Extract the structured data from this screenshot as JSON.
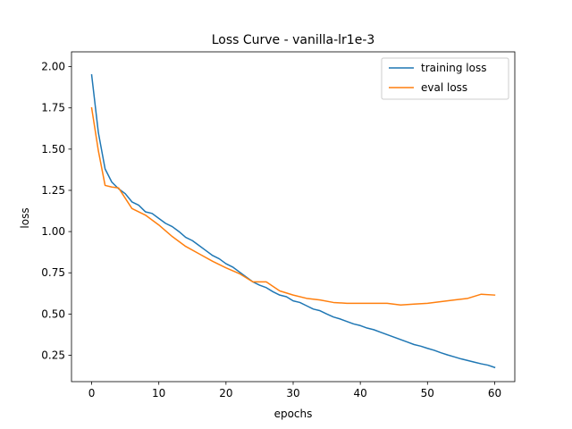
{
  "chart_data": {
    "type": "line",
    "title": "Loss Curve - vanilla-lr1e-3",
    "xlabel": "epochs",
    "ylabel": "loss",
    "xlim": [
      -3,
      63
    ],
    "ylim": [
      0.09,
      2.09
    ],
    "xticks": [
      0,
      10,
      20,
      30,
      40,
      50,
      60
    ],
    "yticks": [
      0.25,
      0.5,
      0.75,
      1.0,
      1.25,
      1.5,
      1.75,
      2.0
    ],
    "ytick_labels": [
      "0.25",
      "0.50",
      "0.75",
      "1.00",
      "1.25",
      "1.50",
      "1.75",
      "2.00"
    ],
    "legend_position": "top-right",
    "grid": false,
    "series": [
      {
        "name": "training loss",
        "color": "#1f77b4",
        "x": [
          0,
          1,
          2,
          3,
          4,
          5,
          6,
          7,
          8,
          9,
          10,
          11,
          12,
          13,
          14,
          15,
          16,
          17,
          18,
          19,
          20,
          21,
          22,
          23,
          24,
          25,
          26,
          27,
          28,
          29,
          30,
          31,
          32,
          33,
          34,
          35,
          36,
          37,
          38,
          39,
          40,
          41,
          42,
          43,
          44,
          45,
          46,
          47,
          48,
          49,
          50,
          51,
          52,
          53,
          54,
          55,
          56,
          57,
          58,
          59,
          60
        ],
        "y": [
          1.95,
          1.6,
          1.38,
          1.3,
          1.26,
          1.23,
          1.18,
          1.16,
          1.12,
          1.11,
          1.08,
          1.05,
          1.03,
          1.0,
          0.965,
          0.945,
          0.915,
          0.885,
          0.855,
          0.835,
          0.805,
          0.785,
          0.755,
          0.725,
          0.695,
          0.675,
          0.66,
          0.635,
          0.615,
          0.605,
          0.58,
          0.57,
          0.55,
          0.53,
          0.52,
          0.5,
          0.482,
          0.47,
          0.455,
          0.44,
          0.43,
          0.415,
          0.405,
          0.39,
          0.375,
          0.36,
          0.345,
          0.33,
          0.315,
          0.305,
          0.292,
          0.28,
          0.265,
          0.252,
          0.24,
          0.228,
          0.218,
          0.208,
          0.198,
          0.19,
          0.176
        ]
      },
      {
        "name": "eval loss",
        "color": "#ff7f0e",
        "x": [
          0,
          1,
          2,
          3,
          4,
          6,
          8,
          10,
          12,
          14,
          16,
          18,
          20,
          22,
          24,
          26,
          28,
          30,
          32,
          34,
          36,
          38,
          40,
          42,
          44,
          46,
          48,
          50,
          52,
          54,
          56,
          58,
          60
        ],
        "y": [
          1.75,
          1.49,
          1.28,
          1.27,
          1.265,
          1.14,
          1.1,
          1.04,
          0.97,
          0.91,
          0.865,
          0.82,
          0.78,
          0.745,
          0.695,
          0.695,
          0.64,
          0.615,
          0.595,
          0.585,
          0.57,
          0.565,
          0.565,
          0.565,
          0.565,
          0.555,
          0.56,
          0.565,
          0.575,
          0.585,
          0.595,
          0.62,
          0.615
        ]
      }
    ]
  }
}
